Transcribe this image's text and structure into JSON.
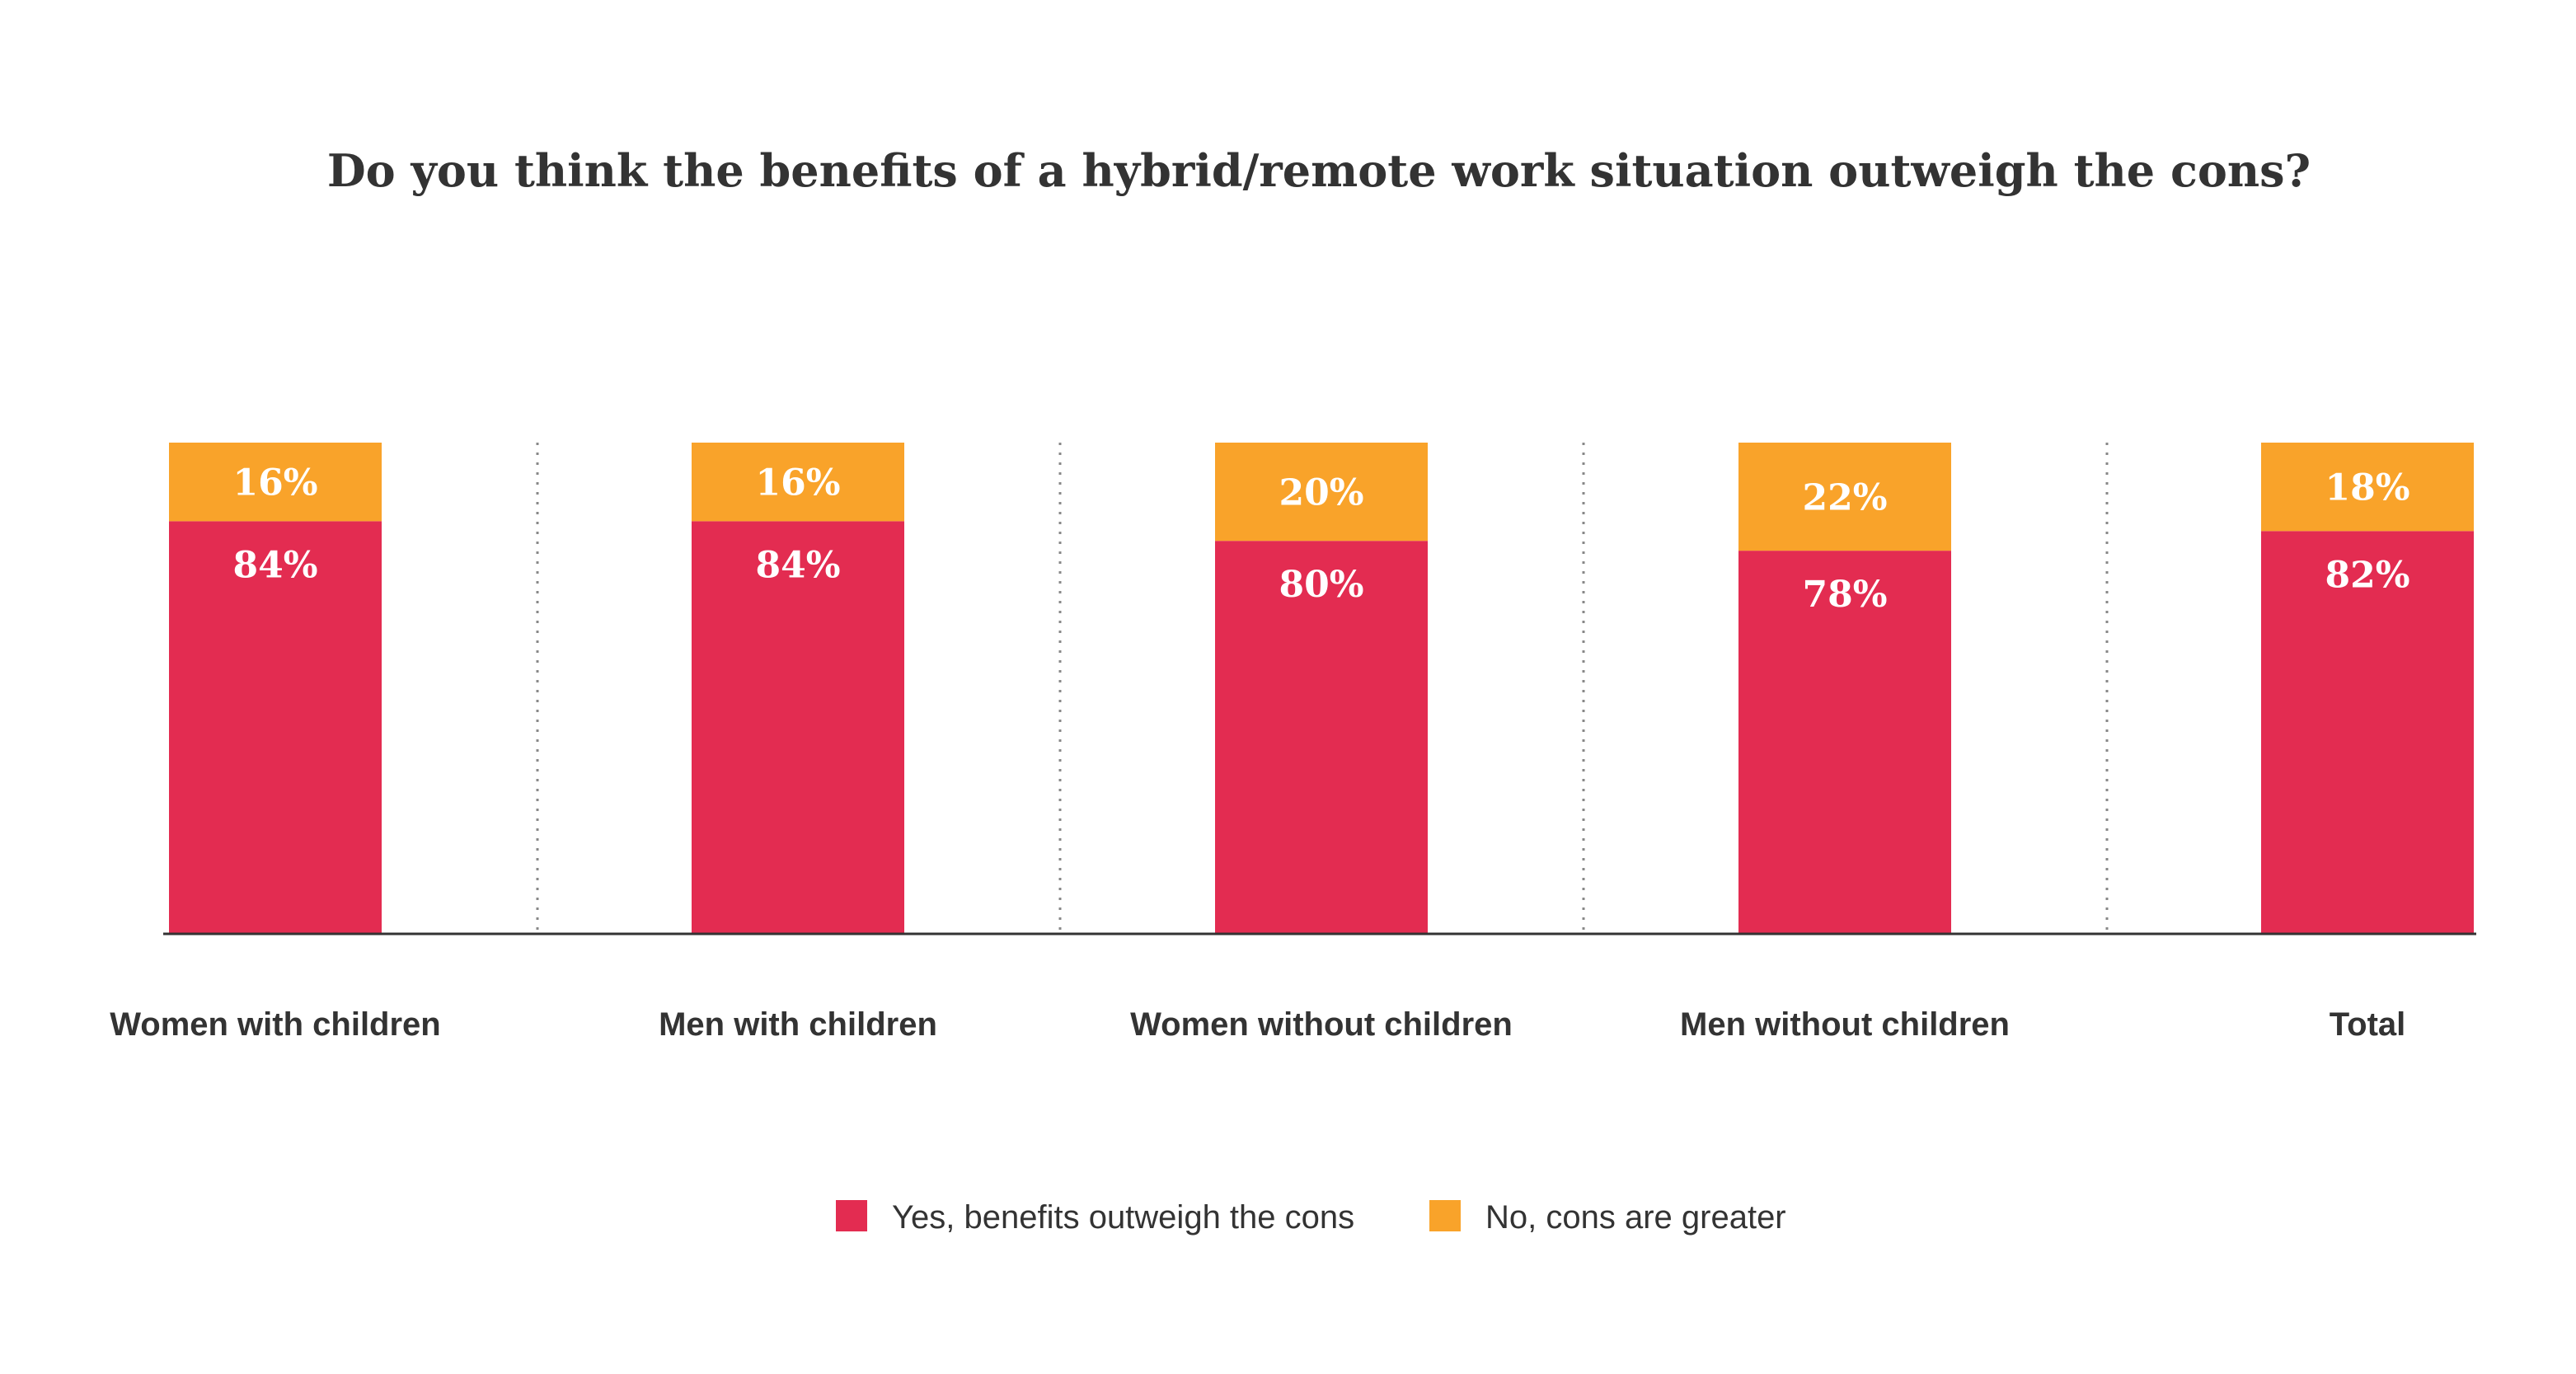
{
  "colors": {
    "yes": "#e32c51",
    "no": "#f9a32a",
    "text": "#333333",
    "baseline": "#333333",
    "divider": "#888888",
    "data_label": "#ffffff"
  },
  "chart_data": {
    "type": "bar",
    "stacked": true,
    "title": "Do you think the benefits of a hybrid/remote work situation outweigh the cons?",
    "categories": [
      "Women with children",
      "Men with children",
      "Women without children",
      "Men without children",
      "Total"
    ],
    "series": [
      {
        "name": "Yes, benefits outweigh the cons",
        "values": [
          84,
          84,
          80,
          78,
          82
        ],
        "labels": [
          "84%",
          "84%",
          "80%",
          "78%",
          "82%"
        ]
      },
      {
        "name": "No, cons are greater",
        "values": [
          16,
          16,
          20,
          22,
          18
        ],
        "labels": [
          "16%",
          "16%",
          "20%",
          "22%",
          "18%"
        ]
      }
    ],
    "ylim": [
      0,
      100
    ],
    "grid": false,
    "legend_position": "bottom-center",
    "xlabel": "",
    "ylabel": ""
  }
}
